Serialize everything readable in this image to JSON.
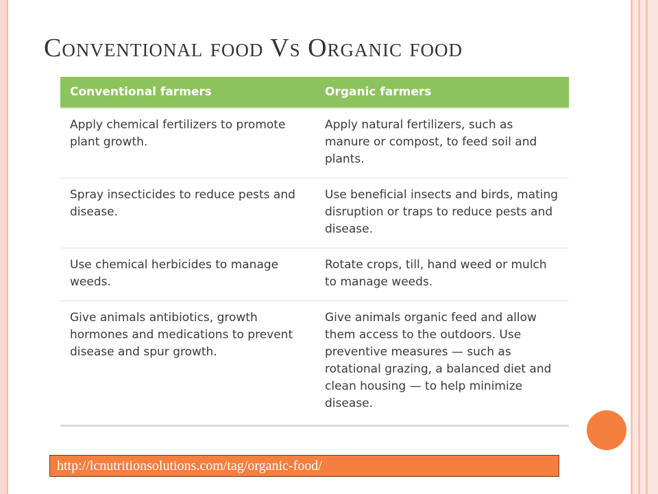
{
  "slide": {
    "title": "Conventional food Vs Organic food",
    "source_link": "http://lcnutritionsolutions.com/tag/organic-food/"
  },
  "colors": {
    "header_green": "#8dc35c",
    "accent_orange": "#f47f3f",
    "frame_pink": "#f3c4b4"
  },
  "table": {
    "headers": [
      "Conventional farmers",
      "Organic farmers"
    ],
    "rows": [
      [
        "Apply chemical fertilizers to promote plant growth.",
        "Apply natural fertilizers, such as manure or compost, to feed soil and plants."
      ],
      [
        "Spray insecticides to reduce pests and disease.",
        "Use beneficial insects and birds, mating disruption or traps to reduce pests and disease."
      ],
      [
        "Use chemical herbicides to manage weeds.",
        "Rotate crops, till, hand weed or mulch to manage weeds."
      ],
      [
        "Give animals antibiotics, growth hormones and medications to prevent disease and spur growth.",
        "Give animals organic feed and allow them access to the outdoors. Use preventive measures — such as rotational grazing, a balanced diet and clean housing — to help minimize disease."
      ]
    ]
  }
}
